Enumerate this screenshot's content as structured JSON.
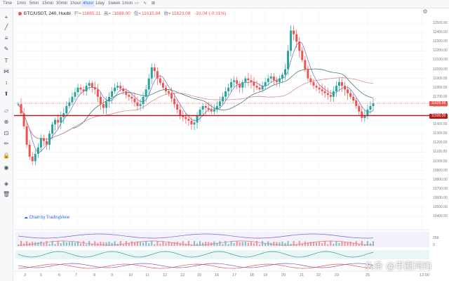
{
  "timeframes": [
    "Time",
    "1min",
    "5min",
    "15min",
    "30min",
    "1hour",
    "4hour",
    "1day",
    "1week",
    "1mon"
  ],
  "active_timeframe": "4hour",
  "legend": {
    "symbol": "BTC/USDT, 240, Huobi",
    "open_label": "开=",
    "open": "11665.11",
    "high_label": "高=",
    "high": "11688.00",
    "low_label": "低=",
    "low": "11615.84",
    "close_label": "收=",
    "close": "11629.08",
    "change": "-36.04 (-0.31%)"
  },
  "powered_by": "Chart by TradingView",
  "watermark": "头条 @币圈鸿钧",
  "price_axis": {
    "ticks": [
      "12500.00",
      "12400.00",
      "12300.00",
      "12200.00",
      "12100.00",
      "12000.00",
      "11900.00",
      "11800.00",
      "11700.00",
      "11600.00",
      "11500.00",
      "11400.00",
      "11300.00",
      "11200.00",
      "11100.00",
      "11000.00",
      "10900.00",
      "10800.00",
      "10700.00",
      "10600.00",
      "10500.00",
      "10400.00"
    ],
    "current_price_label": "11629.08",
    "support_label": "11500.00"
  },
  "indicator_axis": {
    "ticks": [
      "25K",
      "0"
    ]
  },
  "time_axis": {
    "ticks": [
      "3",
      "5",
      "6",
      "7",
      "8",
      "9",
      "10",
      "11",
      "12",
      "13",
      "15",
      "16",
      "17",
      "18",
      "19",
      "20",
      "21",
      "22",
      "23",
      "25",
      "12:00"
    ]
  },
  "colors": {
    "up": "#26a69a",
    "down": "#ef5350",
    "support_line": "#b71c1c",
    "accent": "#2962ff"
  }
}
